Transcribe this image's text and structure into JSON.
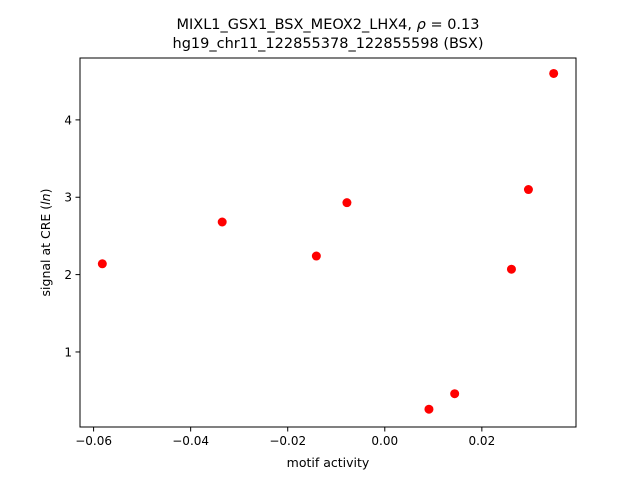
{
  "chart_data": {
    "type": "scatter",
    "title_line1_prefix": "MIXL1_GSX1_BSX_MEOX2_LHX4, ",
    "title_rho_symbol": "ρ",
    "title_rho_suffix": " = 0.13",
    "title_line2": "hg19_chr11_122855378_122855598 (BSX)",
    "xlabel": "motif activity",
    "ylabel_prefix": "signal at CRE (",
    "ylabel_italic": "ln",
    "ylabel_suffix": ")",
    "xlim": [
      -0.0628,
      0.0394
    ],
    "ylim": [
      0.03,
      4.8
    ],
    "x_ticks": [
      -0.06,
      -0.04,
      -0.02,
      0.0,
      0.02
    ],
    "x_tick_labels": [
      "−0.06",
      "−0.04",
      "−0.02",
      "0.00",
      "0.02"
    ],
    "y_ticks": [
      1,
      2,
      3,
      4
    ],
    "y_tick_labels": [
      "1",
      "2",
      "3",
      "4"
    ],
    "grid": false,
    "marker_color": "#ff0000",
    "points": [
      {
        "x": -0.0582,
        "y": 2.14
      },
      {
        "x": -0.0335,
        "y": 2.68
      },
      {
        "x": -0.0141,
        "y": 2.24
      },
      {
        "x": -0.0078,
        "y": 2.93
      },
      {
        "x": 0.0091,
        "y": 0.26
      },
      {
        "x": 0.0144,
        "y": 0.46
      },
      {
        "x": 0.0261,
        "y": 2.07
      },
      {
        "x": 0.0296,
        "y": 3.1
      },
      {
        "x": 0.0348,
        "y": 4.6
      }
    ]
  }
}
